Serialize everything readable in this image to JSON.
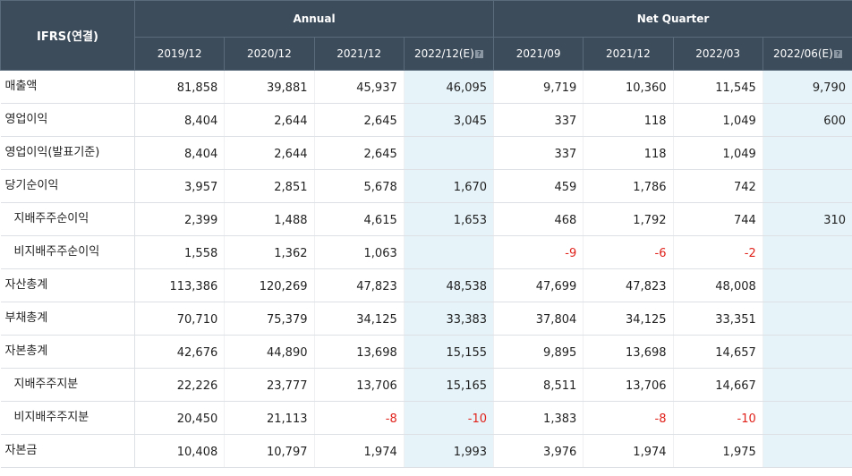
{
  "header": {
    "corner": "IFRS(연결)",
    "annual": "Annual",
    "quarter": "Net Quarter",
    "cols": [
      "2019/12",
      "2020/12",
      "2021/12",
      "2022/12(E)",
      "2021/09",
      "2021/12",
      "2022/03",
      "2022/06(E)"
    ],
    "help_glyph": "?"
  },
  "rows": [
    {
      "label": "매출액",
      "values": [
        "81,858",
        "39,881",
        "45,937",
        "46,095",
        "9,719",
        "10,360",
        "11,545",
        "9,790"
      ]
    },
    {
      "label": "영업이익",
      "values": [
        "8,404",
        "2,644",
        "2,645",
        "3,045",
        "337",
        "118",
        "1,049",
        "600"
      ]
    },
    {
      "label": "영업이익(발표기준)",
      "values": [
        "8,404",
        "2,644",
        "2,645",
        "",
        "337",
        "118",
        "1,049",
        ""
      ]
    },
    {
      "label": "당기순이익",
      "values": [
        "3,957",
        "2,851",
        "5,678",
        "1,670",
        "459",
        "1,786",
        "742",
        ""
      ]
    },
    {
      "label": "지배주주순이익",
      "values": [
        "2,399",
        "1,488",
        "4,615",
        "1,653",
        "468",
        "1,792",
        "744",
        "310"
      ]
    },
    {
      "label": "비지배주주순이익",
      "values": [
        "1,558",
        "1,362",
        "1,063",
        "",
        "-9",
        "-6",
        "-2",
        ""
      ]
    },
    {
      "label": "자산총계",
      "values": [
        "113,386",
        "120,269",
        "47,823",
        "48,538",
        "47,699",
        "47,823",
        "48,008",
        ""
      ]
    },
    {
      "label": "부채총계",
      "values": [
        "70,710",
        "75,379",
        "34,125",
        "33,383",
        "37,804",
        "34,125",
        "33,351",
        ""
      ]
    },
    {
      "label": "자본총계",
      "values": [
        "42,676",
        "44,890",
        "13,698",
        "15,155",
        "9,895",
        "13,698",
        "14,657",
        ""
      ]
    },
    {
      "label": "지배주주지분",
      "values": [
        "22,226",
        "23,777",
        "13,706",
        "15,165",
        "8,511",
        "13,706",
        "14,667",
        ""
      ]
    },
    {
      "label": "비지배주주지분",
      "values": [
        "20,450",
        "21,113",
        "-8",
        "-10",
        "1,383",
        "-8",
        "-10",
        ""
      ]
    },
    {
      "label": "자본금",
      "values": [
        "10,408",
        "10,797",
        "1,974",
        "1,993",
        "3,976",
        "1,974",
        "1,975",
        ""
      ]
    }
  ],
  "colors": {
    "header_bg": "#3d4c5b",
    "estimate_bg": "#e6f4fa",
    "negative": "#e0221b"
  }
}
